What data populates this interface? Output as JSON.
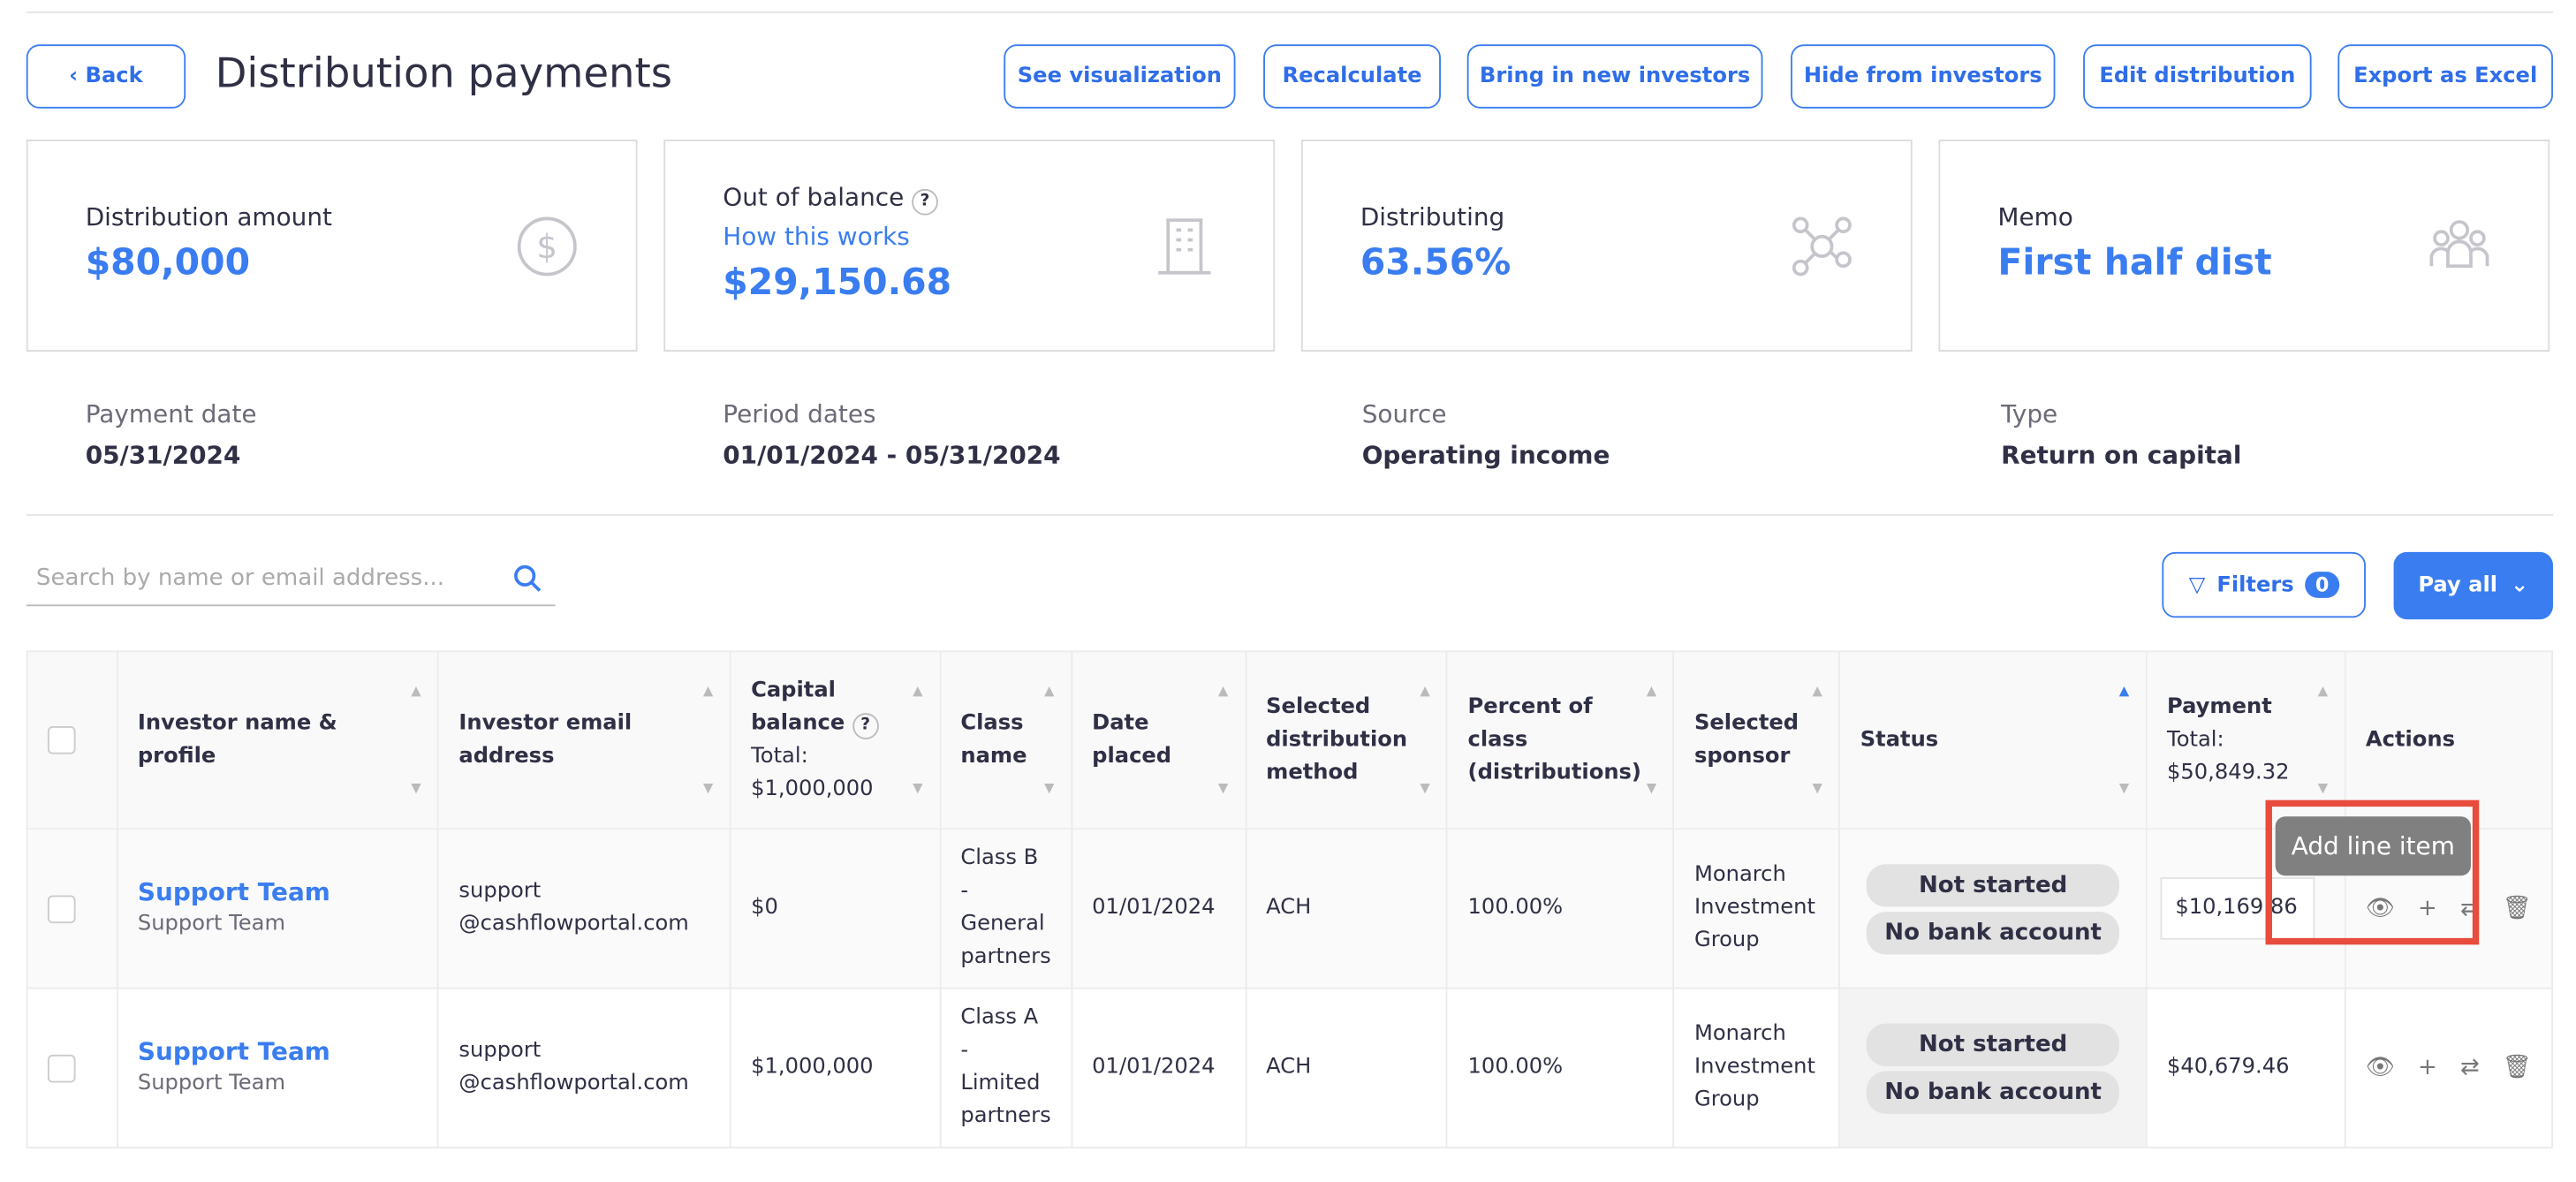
{
  "header": {
    "back": "Back",
    "title": "Distribution payments",
    "buttons": [
      "See visualization",
      "Recalculate",
      "Bring in new investors",
      "Hide from investors",
      "Edit distribution",
      "Export as Excel"
    ]
  },
  "cards": [
    {
      "label": "Distribution amount",
      "value": "$80,000",
      "icon": "dollar-circle-icon"
    },
    {
      "label": "Out of balance",
      "link": "How this works",
      "value": "$29,150.68",
      "icon": "building-icon"
    },
    {
      "label": "Distributing",
      "value": "63.56%",
      "icon": "network-icon"
    },
    {
      "label": "Memo",
      "value": "First half dist",
      "icon": "people-icon"
    }
  ],
  "meta": [
    {
      "label": "Payment date",
      "value": "05/31/2024"
    },
    {
      "label": "Period dates",
      "value": "01/01/2024 - 05/31/2024"
    },
    {
      "label": "Source",
      "value": "Operating income"
    },
    {
      "label": "Type",
      "value": "Return on capital"
    }
  ],
  "search": {
    "placeholder": "Search by name or email address..."
  },
  "filters": {
    "label": "Filters",
    "count": "0"
  },
  "pay_all": "Pay all",
  "columns": {
    "name": "Investor name & profile",
    "email": "Investor email address",
    "capital": "Capital balance",
    "capital_total": "Total: $1,000,000",
    "class": "Class name",
    "date": "Date placed",
    "method": "Selected distribution method",
    "percent": "Percent of class (distributions)",
    "sponsor": "Selected sponsor",
    "status": "Status",
    "payment": "Payment",
    "payment_total": "Total: $50,849.32",
    "actions": "Actions"
  },
  "rows": [
    {
      "name": "Support Team",
      "profile": "Support Team",
      "email": "support @cashflowportal.com",
      "capital": "$0",
      "class": "Class B - General partners",
      "date": "01/01/2024",
      "method": "ACH",
      "percent": "100.00%",
      "sponsor": "Monarch Investment Group",
      "status1": "Not started",
      "status2": "No bank account",
      "payment": "$10,169.86"
    },
    {
      "name": "Support Team",
      "profile": "Support Team",
      "email": "support @cashflowportal.com",
      "capital": "$1,000,000",
      "class": "Class A - Limited partners",
      "date": "01/01/2024",
      "method": "ACH",
      "percent": "100.00%",
      "sponsor": "Monarch Investment Group",
      "status1": "Not started",
      "status2": "No bank account",
      "payment": "$40,679.46"
    }
  ],
  "tooltip": "Add line item",
  "colors": {
    "accent": "#3a7df0",
    "highlight": "#e74c3c"
  }
}
